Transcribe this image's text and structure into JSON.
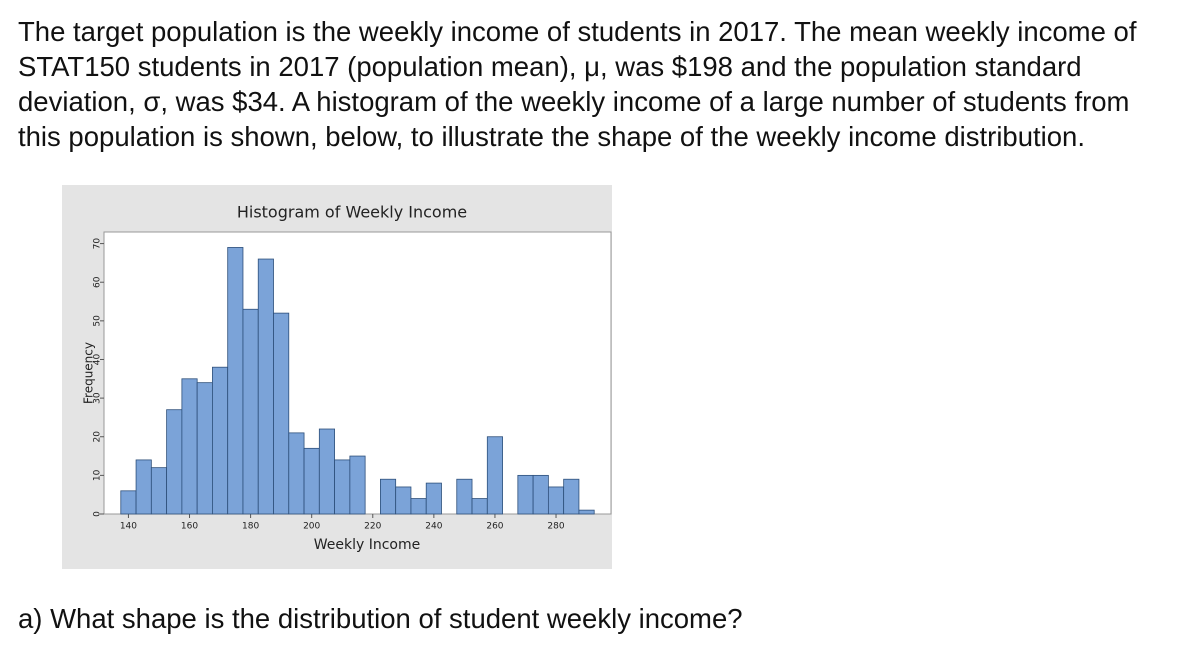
{
  "paragraph_lines": [
    "The target population is the weekly income of students in 2017. The mean weekly income of",
    "STAT150 students in 2017 (population mean), μ, was $198 and the population standard",
    "deviation, σ, was $34. A histogram of the weekly income of a large number of students from",
    "this population is shown, below, to illustrate the shape of the weekly income distribution."
  ],
  "chart_data": {
    "type": "histogram",
    "title": "Histogram of Weekly Income",
    "x_label": "Weekly Income",
    "y_label": "Frequency",
    "bins": [
      137.5,
      142.5,
      147.5,
      152.5,
      157.5,
      162.5,
      167.5,
      172.5,
      177.5,
      182.5,
      187.5,
      192.5,
      197.5,
      202.5,
      207.5,
      212.5,
      217.5,
      222.5,
      227.5,
      232.5,
      237.5,
      242.5,
      247.5,
      252.5,
      257.5,
      262.5,
      267.5,
      272.5,
      277.5,
      282.5,
      287.5,
      292.5
    ],
    "values": [
      6,
      14,
      12,
      27,
      35,
      34,
      38,
      69,
      53,
      66,
      52,
      21,
      17,
      22,
      14,
      15,
      0,
      9,
      7,
      4,
      8,
      0,
      9,
      4,
      20,
      0,
      10,
      10,
      7,
      9,
      1
    ],
    "color": "#7ba3d8",
    "xlim": [
      132,
      298
    ],
    "ylim": [
      0,
      73
    ],
    "xticks": [
      140,
      160,
      180,
      200,
      220,
      240,
      260,
      280
    ],
    "yticks": [
      0,
      10,
      20,
      30,
      40,
      50,
      60,
      70
    ]
  },
  "question": "a)  What shape is the distribution of student weekly income?"
}
